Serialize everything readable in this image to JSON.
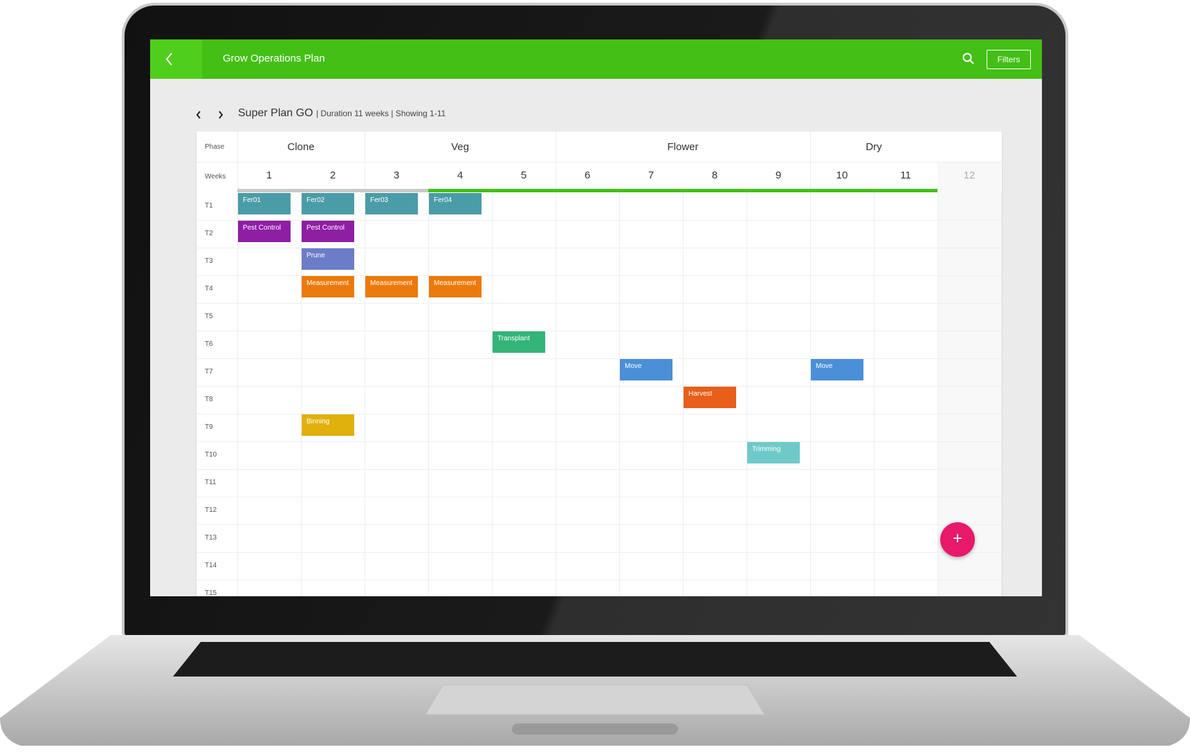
{
  "header": {
    "title": "Grow Operations Plan",
    "filters_button": "Filters"
  },
  "plan": {
    "name": "Super Plan GO",
    "info": "| Duration 11 weeks | Showing 1-11"
  },
  "grid": {
    "phase_label": "Phase",
    "weeks_label": "Weeks",
    "phases": [
      {
        "name": "Clone",
        "weeks": [
          "1",
          "2"
        ]
      },
      {
        "name": "Veg",
        "weeks": [
          "3",
          "4",
          "5"
        ]
      },
      {
        "name": "Flower",
        "weeks": [
          "6",
          "7",
          "8",
          "9"
        ]
      },
      {
        "name": "Dry",
        "weeks": [
          "10",
          "11"
        ]
      }
    ],
    "extra_week": "12",
    "rows": [
      {
        "label": "T1",
        "cells": [
          {
            "label": "Fer01",
            "color": "#4a9ca6"
          },
          {
            "label": "Fer02",
            "color": "#4a9ca6"
          },
          {
            "label": "Fer03",
            "color": "#4a9ca6"
          },
          {
            "label": "Fer04",
            "color": "#4a9ca6"
          },
          null,
          null,
          null,
          null,
          null,
          null,
          null,
          null
        ]
      },
      {
        "label": "T2",
        "cells": [
          {
            "label": "Pest Control",
            "color": "#8e1fa3"
          },
          {
            "label": "Pest Control",
            "color": "#8e1fa3"
          },
          null,
          null,
          null,
          null,
          null,
          null,
          null,
          null,
          null,
          null
        ]
      },
      {
        "label": "T3",
        "cells": [
          null,
          {
            "label": "Prune",
            "color": "#6b7cc9"
          },
          null,
          null,
          null,
          null,
          null,
          null,
          null,
          null,
          null,
          null
        ]
      },
      {
        "label": "T4",
        "cells": [
          null,
          {
            "label": "Measurement",
            "color": "#ec7a0a"
          },
          {
            "label": "Measurement",
            "color": "#ec7a0a"
          },
          {
            "label": "Measurement",
            "color": "#ec7a0a"
          },
          null,
          null,
          null,
          null,
          null,
          null,
          null,
          null
        ]
      },
      {
        "label": "T5",
        "cells": [
          null,
          null,
          null,
          null,
          null,
          null,
          null,
          null,
          null,
          null,
          null,
          null
        ]
      },
      {
        "label": "T6",
        "cells": [
          null,
          null,
          null,
          null,
          {
            "label": "Transplant",
            "color": "#33b479"
          },
          null,
          null,
          null,
          null,
          null,
          null,
          null
        ]
      },
      {
        "label": "T7",
        "cells": [
          null,
          null,
          null,
          null,
          null,
          null,
          {
            "label": "Move",
            "color": "#4a8fd8"
          },
          null,
          null,
          {
            "label": "Move",
            "color": "#4a8fd8"
          },
          null,
          null
        ]
      },
      {
        "label": "T8",
        "cells": [
          null,
          null,
          null,
          null,
          null,
          null,
          null,
          {
            "label": "Harvest",
            "color": "#e85e1a"
          },
          null,
          null,
          null,
          null
        ]
      },
      {
        "label": "T9",
        "cells": [
          null,
          {
            "label": "Binning",
            "color": "#e0b10c"
          },
          null,
          null,
          null,
          null,
          null,
          null,
          null,
          null,
          null,
          null
        ]
      },
      {
        "label": "T10",
        "cells": [
          null,
          null,
          null,
          null,
          null,
          null,
          null,
          null,
          {
            "label": "Trimming",
            "color": "#6ecac9"
          },
          null,
          null,
          null
        ]
      },
      {
        "label": "T11",
        "cells": [
          null,
          null,
          null,
          null,
          null,
          null,
          null,
          null,
          null,
          null,
          null,
          null
        ]
      },
      {
        "label": "T12",
        "cells": [
          null,
          null,
          null,
          null,
          null,
          null,
          null,
          null,
          null,
          null,
          null,
          null
        ]
      },
      {
        "label": "T13",
        "cells": [
          null,
          null,
          null,
          null,
          null,
          null,
          null,
          null,
          null,
          null,
          null,
          null
        ]
      },
      {
        "label": "T14",
        "cells": [
          null,
          null,
          null,
          null,
          null,
          null,
          null,
          null,
          null,
          null,
          null,
          null
        ]
      },
      {
        "label": "T15",
        "cells": [
          null,
          null,
          null,
          null,
          null,
          null,
          null,
          null,
          null,
          null,
          null,
          null
        ]
      }
    ]
  }
}
